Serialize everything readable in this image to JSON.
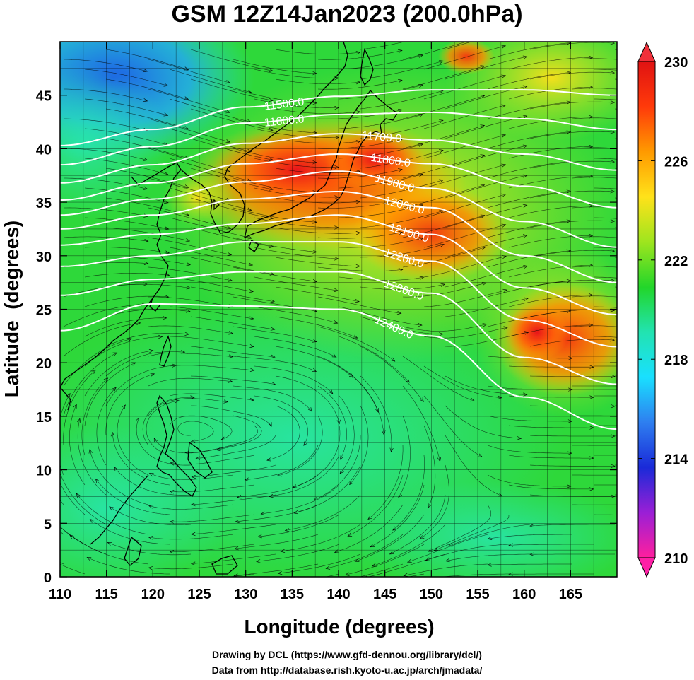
{
  "title": "GSM 12Z14Jan2023 (200.0hPa)",
  "xlabel": "Longitude (degrees)",
  "ylabel": "Latitude  (degrees)",
  "x_ticks": [
    "110",
    "115",
    "120",
    "125",
    "130",
    "135",
    "140",
    "145",
    "150",
    "155",
    "160",
    "165"
  ],
  "y_ticks": [
    "0",
    "5",
    "10",
    "15",
    "20",
    "25",
    "30",
    "35",
    "40",
    "45"
  ],
  "colorbar": {
    "labels": [
      "230",
      "226",
      "222",
      "218",
      "214",
      "210"
    ],
    "values": [
      230,
      226,
      222,
      218,
      214,
      210
    ],
    "range": [
      210,
      230
    ],
    "colors": [
      "#ff1f9e",
      "#9a1fd6",
      "#1a2ad8",
      "#2e7ff0",
      "#19e0ff",
      "#22e3b0",
      "#22d62a",
      "#9ee51e",
      "#ffe21a",
      "#ff9a00",
      "#ff3a0a",
      "#e01212"
    ]
  },
  "contour_labels": [
    "11500.0",
    "11600.0",
    "11700.0",
    "11800.0",
    "11900.0",
    "12000.0",
    "12100.0",
    "12200.0",
    "12300.0",
    "12400.0"
  ],
  "credits": {
    "line1": "Drawing by DCL (https://www.gfd-dennou.org/library/dcl/)",
    "line2": "Data from http://database.rish.kyoto-u.ac.jp/arch/jmadata/"
  },
  "chart_data": {
    "type": "heatmap",
    "title": "GSM 12Z14Jan2023 (200.0hPa)",
    "xlabel": "Longitude (degrees)",
    "ylabel": "Latitude  (degrees)",
    "xlim": [
      110,
      170
    ],
    "ylim": [
      0,
      50
    ],
    "x_ticks": [
      110,
      115,
      120,
      125,
      130,
      135,
      140,
      145,
      150,
      155,
      160,
      165
    ],
    "y_ticks": [
      0,
      5,
      10,
      15,
      20,
      25,
      30,
      35,
      40,
      45
    ],
    "color_range": [
      210,
      230
    ],
    "contours": [
      {
        "label": "11500.0",
        "lon": [
          110,
          120,
          130,
          140,
          150,
          160,
          170
        ],
        "lat": [
          40.3,
          41.8,
          43.9,
          44.9,
          45.5,
          45.5,
          45.0
        ]
      },
      {
        "label": "11600.0",
        "lon": [
          110,
          120,
          130,
          140,
          150,
          160,
          170
        ],
        "lat": [
          38.5,
          40.2,
          42.4,
          43.2,
          43.4,
          42.8,
          41.8
        ]
      },
      {
        "label": "11700.0",
        "lon": [
          110,
          120,
          130,
          140,
          150,
          160,
          170
        ],
        "lat": [
          36.8,
          38.5,
          40.5,
          41.4,
          40.8,
          39.5,
          38.0
        ]
      },
      {
        "label": "11800.0",
        "lon": [
          110,
          120,
          130,
          140,
          150,
          160,
          170
        ],
        "lat": [
          35.2,
          36.8,
          38.6,
          39.5,
          38.6,
          36.5,
          34.5
        ]
      },
      {
        "label": "11900.0",
        "lon": [
          110,
          120,
          130,
          140,
          150,
          160,
          170
        ],
        "lat": [
          33.8,
          35.3,
          36.9,
          37.9,
          36.3,
          33.2,
          30.8
        ]
      },
      {
        "label": "12000.0",
        "lon": [
          110,
          120,
          130,
          140,
          150,
          160,
          170
        ],
        "lat": [
          32.5,
          33.8,
          35.3,
          36.0,
          34.5,
          30.0,
          27.5
        ]
      },
      {
        "label": "12100.0",
        "lon": [
          110,
          120,
          130,
          140,
          150,
          160,
          170
        ],
        "lat": [
          31.0,
          32.0,
          33.0,
          33.8,
          32.0,
          27.0,
          24.5
        ]
      },
      {
        "label": "12200.0",
        "lon": [
          110,
          120,
          130,
          140,
          150,
          160,
          170
        ],
        "lat": [
          29.0,
          30.0,
          31.3,
          31.3,
          29.5,
          24.0,
          21.5
        ]
      },
      {
        "label": "12300.0",
        "lon": [
          110,
          120,
          130,
          140,
          150,
          160,
          170
        ],
        "lat": [
          26.3,
          27.8,
          28.5,
          28.5,
          26.5,
          20.5,
          18.0
        ]
      },
      {
        "label": "12400.0",
        "lon": [
          110,
          120,
          130,
          140,
          150,
          160,
          170
        ],
        "lat": [
          23.0,
          25.5,
          25.3,
          25.0,
          22.5,
          16.8,
          13.8
        ]
      }
    ]
  }
}
